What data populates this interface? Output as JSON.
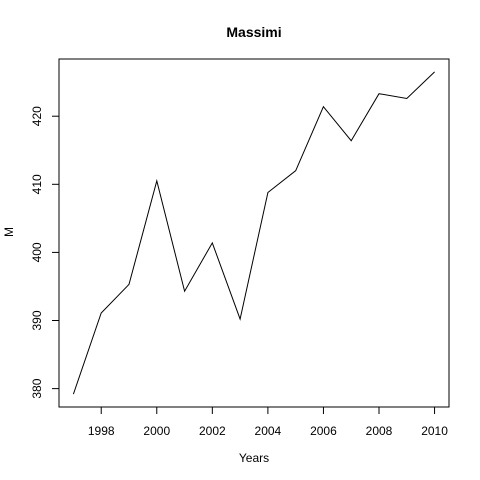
{
  "chart_data": {
    "type": "line",
    "title": "Massimi",
    "xlabel": "Years",
    "ylabel": "M",
    "x": [
      1997,
      1998,
      1999,
      2000,
      2001,
      2002,
      2003,
      2004,
      2005,
      2006,
      2007,
      2008,
      2009,
      2010
    ],
    "y": [
      379.2,
      391.1,
      395.3,
      410.5,
      394.3,
      401.4,
      390.2,
      408.8,
      412.0,
      421.4,
      416.4,
      423.3,
      422.6,
      426.5
    ],
    "xlim": [
      1996.48,
      2010.52
    ],
    "ylim": [
      377.3,
      428.4
    ],
    "xticks": [
      1998,
      2000,
      2002,
      2004,
      2006,
      2008,
      2010
    ],
    "yticks": [
      380,
      390,
      400,
      410,
      420
    ],
    "line_color": "#000000",
    "grid": false,
    "legend": "none"
  }
}
